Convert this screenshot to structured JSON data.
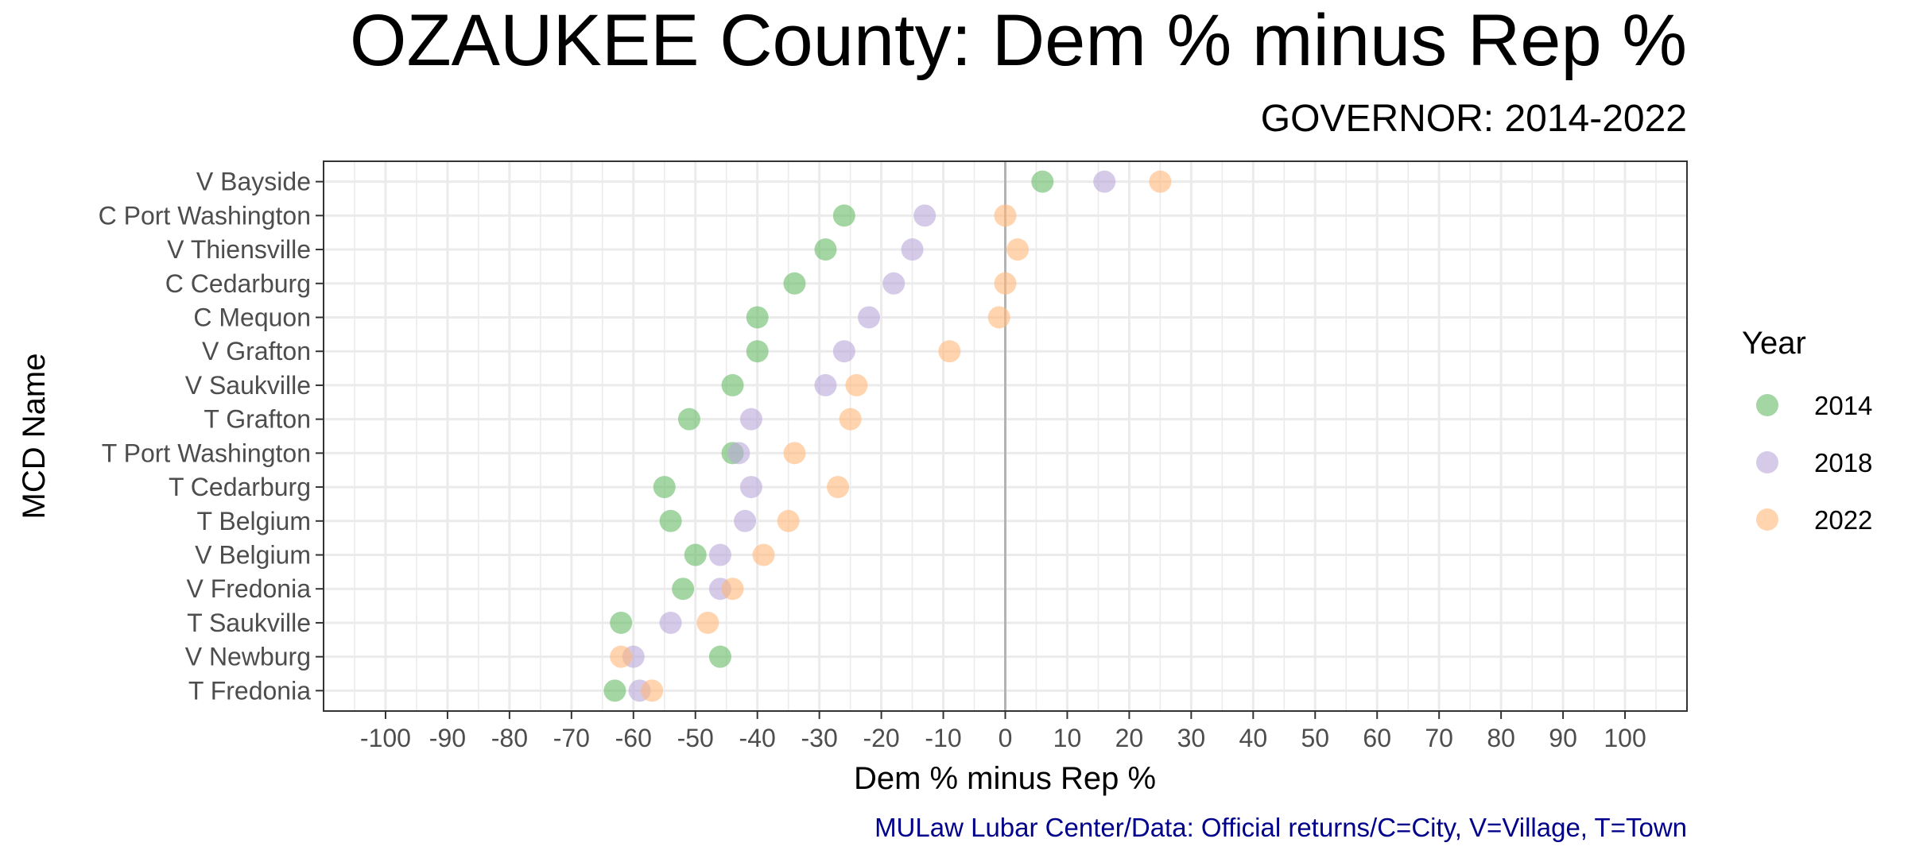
{
  "chart_data": {
    "type": "scatter",
    "title": "OZAUKEE County: Dem % minus Rep %",
    "subtitle": "GOVERNOR: 2014-2022",
    "xlabel": "Dem % minus Rep %",
    "ylabel": "MCD Name",
    "caption": "MULaw Lubar Center/Data: Official returns/C=City, V=Village, T=Town",
    "xlim": [
      -110,
      110
    ],
    "x_ticks": [
      -100,
      -90,
      -80,
      -70,
      -60,
      -50,
      -40,
      -30,
      -20,
      -10,
      0,
      10,
      20,
      30,
      40,
      50,
      60,
      70,
      80,
      90,
      100
    ],
    "grid": true,
    "reference_line_x": 0,
    "legend": {
      "title": "Year",
      "position": "right"
    },
    "categories": [
      "V Bayside",
      "C Port Washington",
      "V Thiensville",
      "C Cedarburg",
      "C Mequon",
      "V Grafton",
      "V Saukville",
      "T Grafton",
      "T Port Washington",
      "T Cedarburg",
      "T Belgium",
      "V Belgium",
      "V Fredonia",
      "T Saukville",
      "V Newburg",
      "T Fredonia"
    ],
    "series": [
      {
        "name": "2014",
        "color": "#66bb66",
        "values": [
          6,
          -26,
          -29,
          -34,
          -40,
          -40,
          -44,
          -51,
          -44,
          -55,
          -54,
          -50,
          -52,
          -62,
          -46,
          -63
        ]
      },
      {
        "name": "2018",
        "color": "#b9a8d8",
        "values": [
          16,
          -13,
          -15,
          -18,
          -22,
          -26,
          -29,
          -41,
          -43,
          -41,
          -42,
          -46,
          -46,
          -54,
          -60,
          -59
        ]
      },
      {
        "name": "2022",
        "color": "#ffb77a",
        "values": [
          25,
          0,
          2,
          0,
          -1,
          -9,
          -24,
          -25,
          -34,
          -27,
          -35,
          -39,
          -44,
          -48,
          -62,
          -57
        ]
      }
    ]
  }
}
